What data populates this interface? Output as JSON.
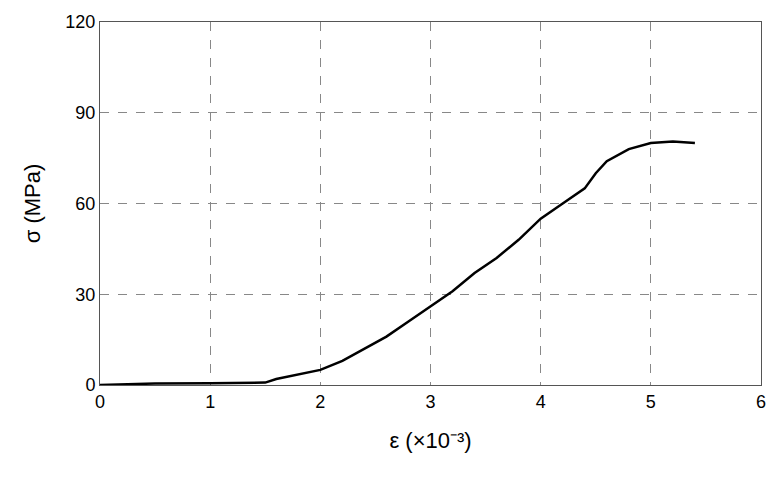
{
  "chart_data": {
    "type": "line",
    "x_label": "ε (×10⁻³)",
    "y_label": "σ (MPa)",
    "x": [
      0,
      0.2,
      0.5,
      1.0,
      1.5,
      1.6,
      1.8,
      2.0,
      2.2,
      2.4,
      2.6,
      2.8,
      3.0,
      3.2,
      3.4,
      3.6,
      3.8,
      4.0,
      4.2,
      4.4,
      4.5,
      4.6,
      4.8,
      5.0,
      5.2,
      5.4
    ],
    "series": [
      {
        "name": "σ",
        "color": "#000000",
        "values": [
          0,
          0.2,
          0.5,
          0.6,
          0.8,
          2,
          3.5,
          5,
          8,
          12,
          16,
          21,
          26,
          31,
          37,
          42,
          48,
          55,
          60,
          65,
          70,
          74,
          78,
          80,
          80.5,
          80
        ]
      }
    ],
    "xlim": [
      0,
      6
    ],
    "xticks": [
      0,
      1,
      2,
      3,
      4,
      5,
      6
    ],
    "ylim": [
      0,
      120
    ],
    "yticks": [
      0,
      30,
      60,
      90,
      120
    ],
    "grid": true
  }
}
